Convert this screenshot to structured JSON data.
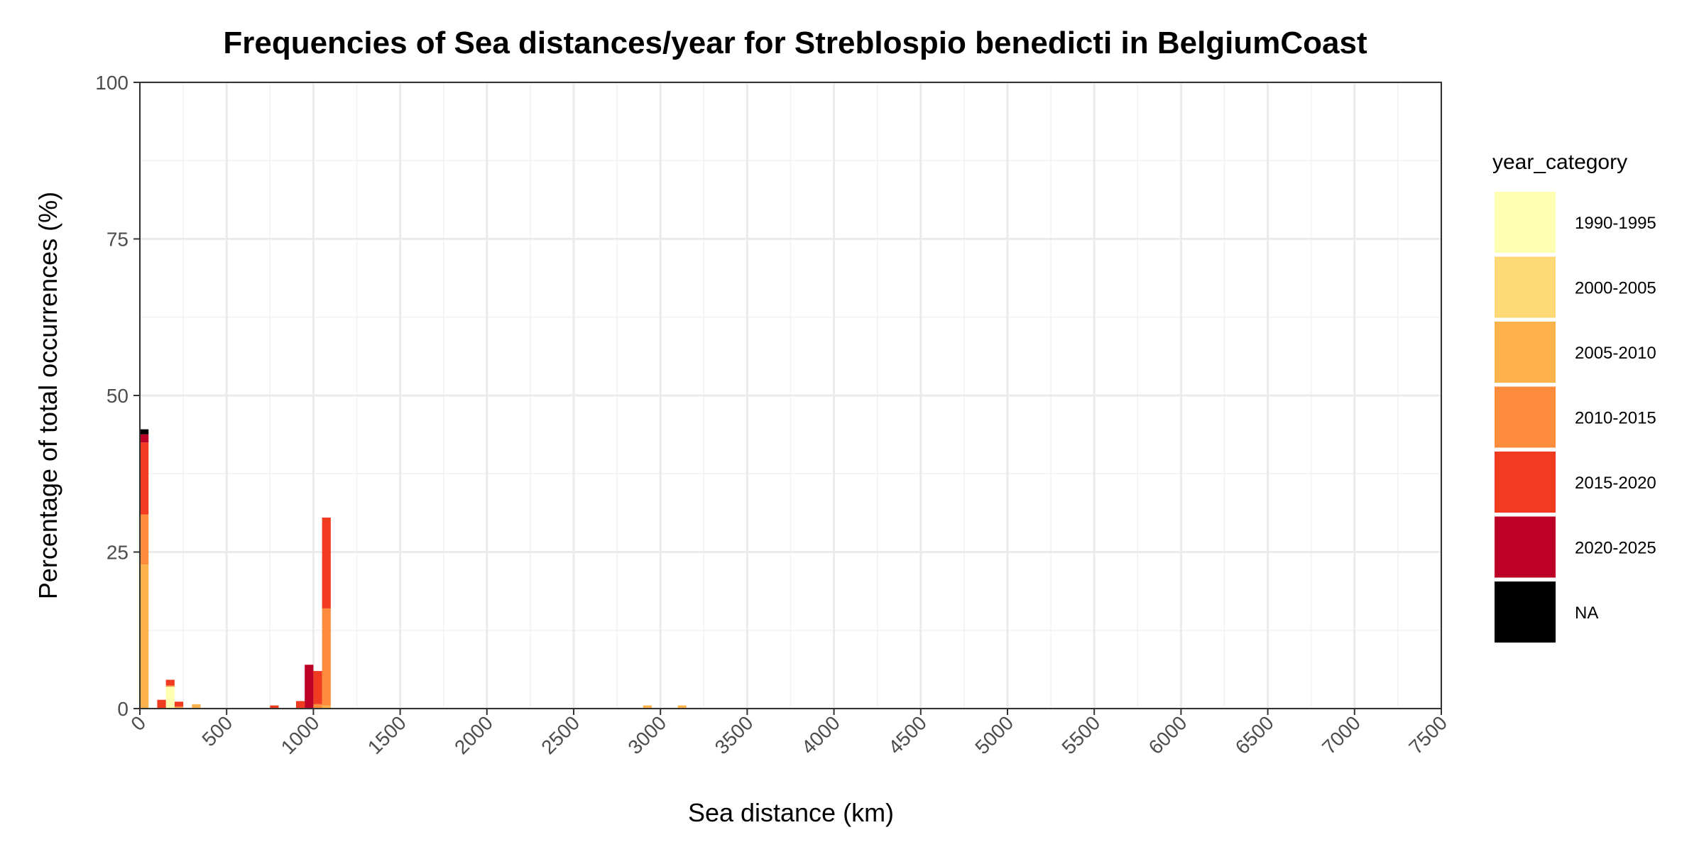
{
  "chart_data": {
    "type": "bar",
    "stacked": true,
    "title": "Frequencies of Sea distances/year for Streblospio benedicti in BelgiumCoast",
    "xlabel": "Sea distance (km)",
    "ylabel": "Percentage of total occurrences (%)",
    "xlim": [
      0,
      7500
    ],
    "ylim": [
      0,
      100
    ],
    "x_ticks": [
      0,
      500,
      1000,
      1500,
      2000,
      2500,
      3000,
      3500,
      4000,
      4500,
      5000,
      5500,
      6000,
      6500,
      7000,
      7500
    ],
    "x_tick_labels": [
      "0",
      "500",
      "1000",
      "1500",
      "2000",
      "2500",
      "3000",
      "3500",
      "4000",
      "4500",
      "5000",
      "5500",
      "6000",
      "6500",
      "7000",
      "7500"
    ],
    "y_ticks": [
      0,
      25,
      50,
      75,
      100
    ],
    "y_tick_labels": [
      "0",
      "25",
      "50",
      "75",
      "100"
    ],
    "bin_width": 50,
    "grid": true,
    "legend": {
      "title": "year_category",
      "placement": "right"
    },
    "series": [
      {
        "name": "1990-1995",
        "color": "#FFFFB2",
        "bins": [
          [
            150,
            3.5
          ]
        ]
      },
      {
        "name": "2000-2005",
        "color": "#FED976",
        "bins": []
      },
      {
        "name": "2005-2010",
        "color": "#FEB24C",
        "bins": [
          [
            0,
            23.0
          ],
          [
            200,
            0.3
          ],
          [
            300,
            0.7
          ],
          [
            1050,
            0.5
          ],
          [
            2900,
            0.5
          ],
          [
            3100,
            0.5
          ]
        ]
      },
      {
        "name": "2010-2015",
        "color": "#FD8D3C",
        "bins": [
          [
            0,
            8.0
          ],
          [
            150,
            0.2
          ],
          [
            1000,
            0.7
          ],
          [
            1050,
            15.5
          ]
        ]
      },
      {
        "name": "2015-2020",
        "color": "#F03B20",
        "bins": [
          [
            0,
            11.5
          ],
          [
            100,
            1.4
          ],
          [
            150,
            0.9
          ],
          [
            200,
            0.8
          ],
          [
            750,
            0.5
          ],
          [
            900,
            1.2
          ],
          [
            1000,
            5.3
          ],
          [
            1050,
            14.5
          ]
        ]
      },
      {
        "name": "2020-2025",
        "color": "#BD0026",
        "bins": [
          [
            0,
            1.3
          ],
          [
            950,
            7.0
          ]
        ]
      },
      {
        "name": "NA",
        "color": "#000000",
        "bins": [
          [
            0,
            0.8
          ]
        ]
      }
    ]
  }
}
